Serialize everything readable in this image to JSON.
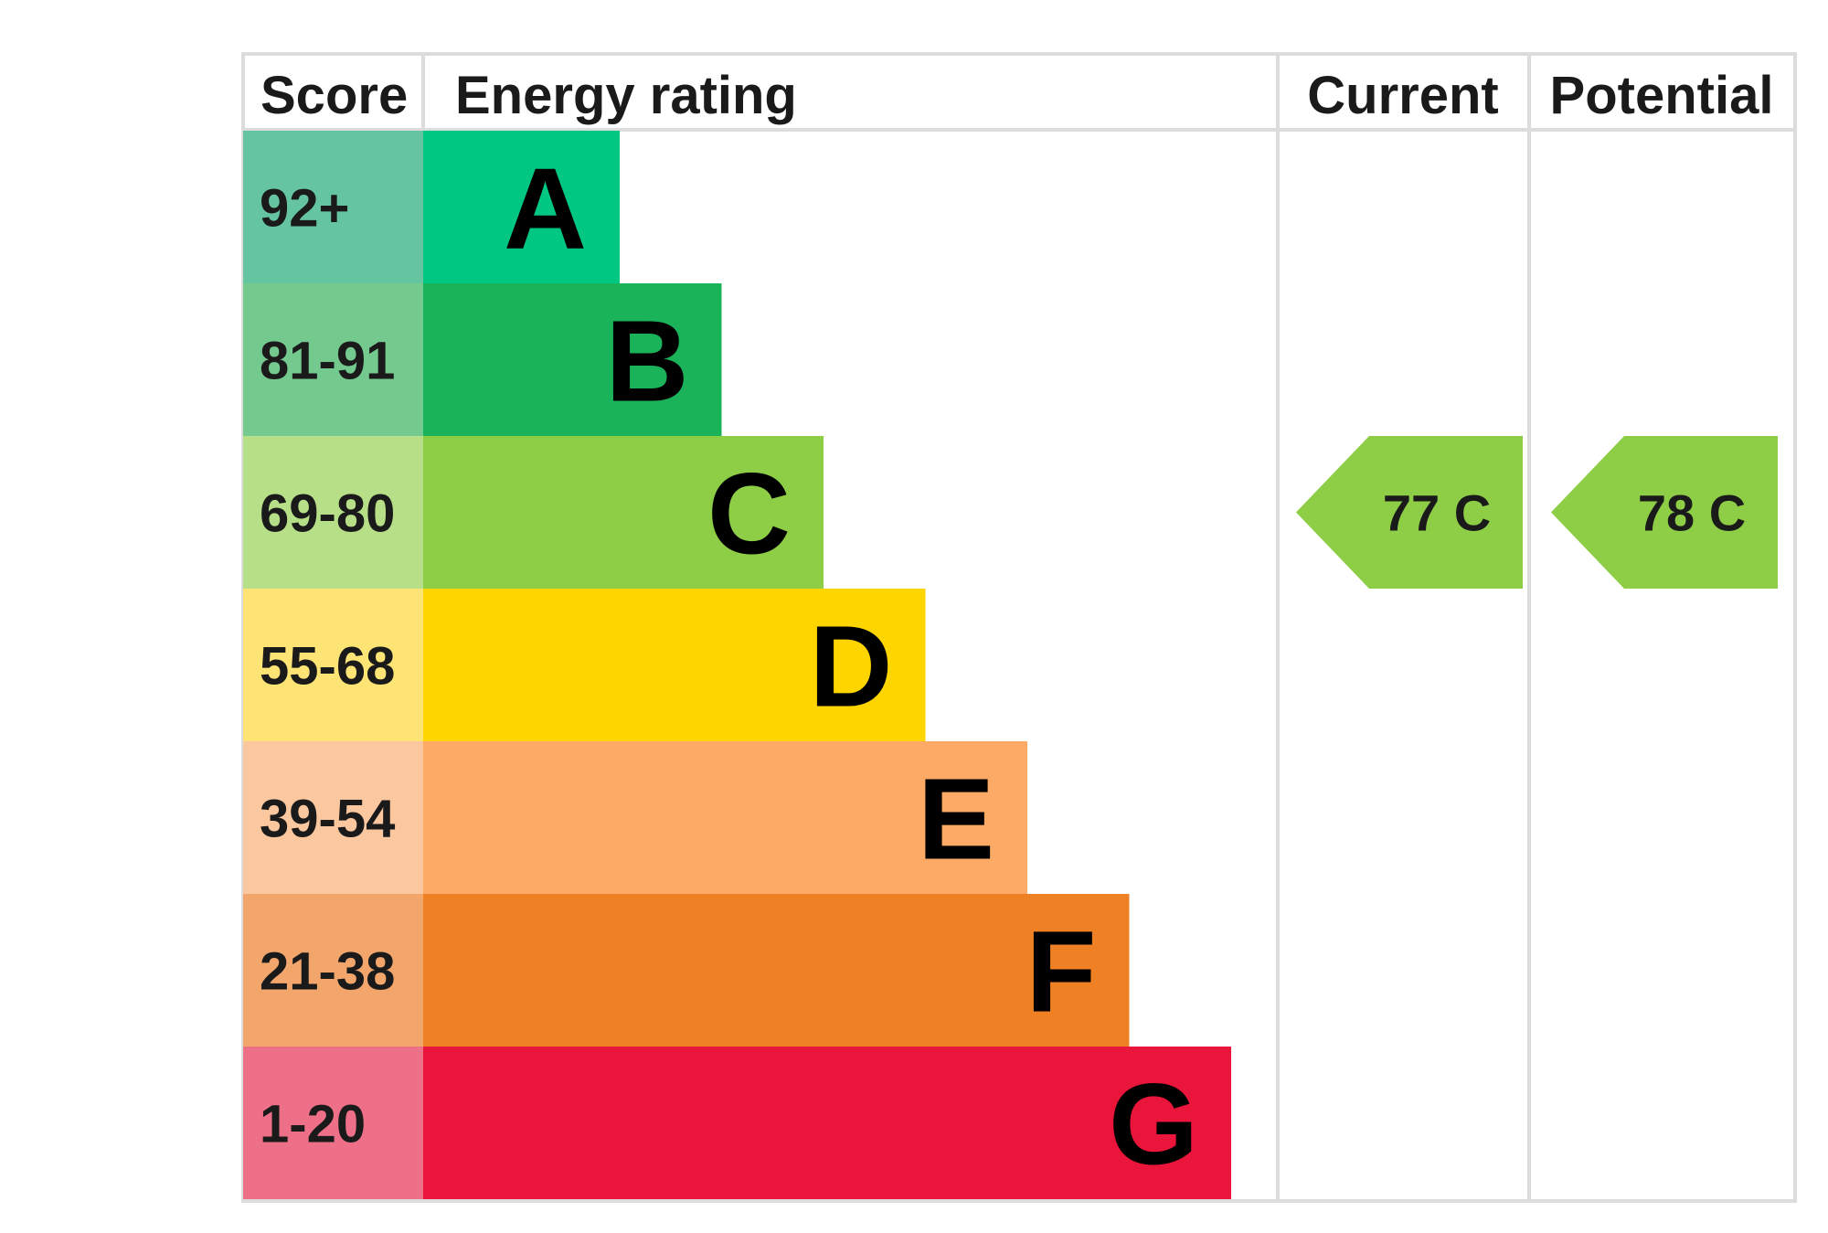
{
  "chart_data": {
    "type": "bar",
    "headers": {
      "score": "Score",
      "rating": "Energy rating",
      "current": "Current",
      "potential": "Potential"
    },
    "bands": [
      {
        "letter": "A",
        "score": "92+",
        "color": "#00c781",
        "score_color": "#65c5a1"
      },
      {
        "letter": "B",
        "score": "81-91",
        "color": "#1bb35a",
        "score_color": "#74c98f"
      },
      {
        "letter": "C",
        "score": "69-80",
        "color": "#8dce46",
        "score_color": "#b7df88"
      },
      {
        "letter": "D",
        "score": "55-68",
        "color": "#ffd500",
        "score_color": "#fde474"
      },
      {
        "letter": "E",
        "score": "39-54",
        "color": "#fcaa65",
        "score_color": "#fbc79f"
      },
      {
        "letter": "F",
        "score": "21-38",
        "color": "#ef8023",
        "score_color": "#f2a66c"
      },
      {
        "letter": "G",
        "score": "1-20",
        "color": "#e9153b",
        "score_color": "#ee7088"
      }
    ],
    "current": {
      "value": 77,
      "band": "C",
      "label": "77  C",
      "color": "#8dce46"
    },
    "potential": {
      "value": 78,
      "band": "C",
      "label": "78  C",
      "color": "#8dce46"
    }
  }
}
